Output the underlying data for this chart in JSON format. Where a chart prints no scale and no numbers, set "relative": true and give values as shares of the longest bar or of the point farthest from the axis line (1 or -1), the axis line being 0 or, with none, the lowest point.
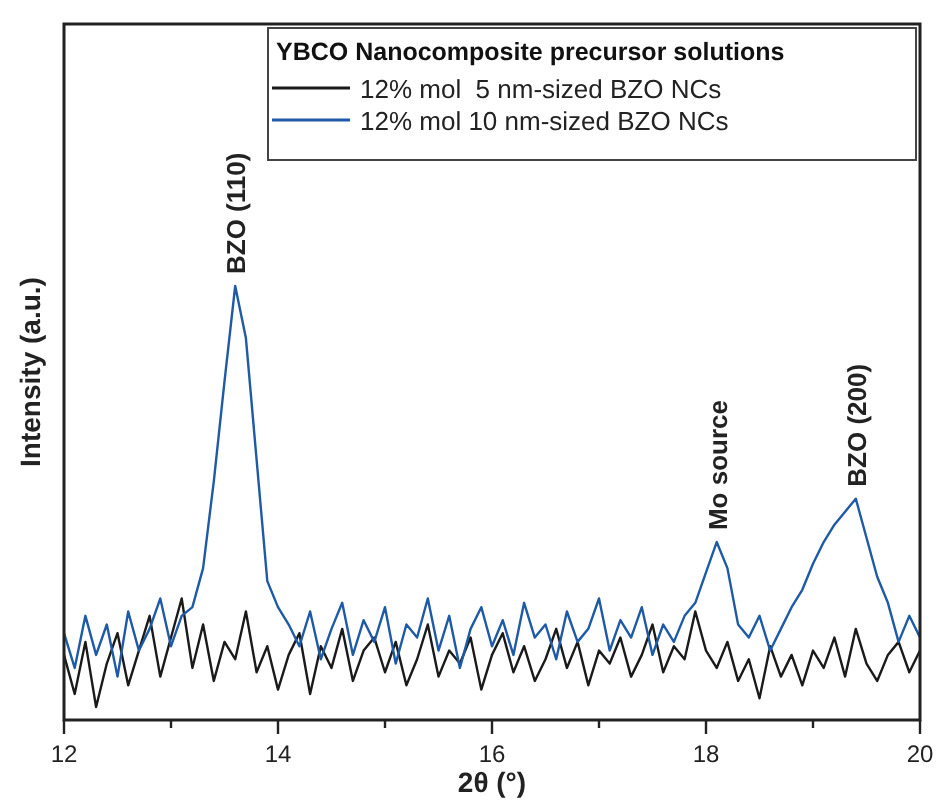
{
  "chart_data": {
    "type": "line",
    "relative": true,
    "xlabel": "2θ (°)",
    "ylabel": "Intensity (a.u.)",
    "legend_title": "YBCO Nanocomposite precursor solutions",
    "legend": "top right",
    "tick_labels": "x",
    "line_style": "solid",
    "xlim": [
      12,
      20
    ],
    "xticks": [
      12,
      {
        "value": 13,
        "label": null
      },
      14,
      {
        "value": 15,
        "label": null
      },
      16,
      {
        "value": 17,
        "label": null
      },
      18,
      {
        "value": 19,
        "label": null
      },
      20
    ],
    "x": [
      12,
      12.1,
      12.2,
      12.3,
      12.4,
      12.5,
      12.6,
      12.7,
      12.8,
      12.9,
      13,
      13.1,
      13.2,
      13.3,
      13.4,
      13.5,
      13.6,
      13.7,
      13.8,
      13.9,
      14,
      14.1,
      14.2,
      14.3,
      14.4,
      14.5,
      14.6,
      14.7,
      14.8,
      14.9,
      15,
      15.1,
      15.2,
      15.3,
      15.4,
      15.5,
      15.6,
      15.7,
      15.8,
      15.9,
      16,
      16.1,
      16.2,
      16.3,
      16.4,
      16.5,
      16.6,
      16.7,
      16.8,
      16.9,
      17,
      17.1,
      17.2,
      17.3,
      17.4,
      17.5,
      17.6,
      17.7,
      17.8,
      17.9,
      18,
      18.1,
      18.2,
      18.3,
      18.4,
      18.5,
      18.6,
      18.7,
      18.8,
      18.9,
      19,
      19.1,
      19.2,
      19.3,
      19.4,
      19.5,
      19.6,
      19.7,
      19.8,
      19.9,
      20
    ],
    "series": [
      {
        "name": "12% mol  5 nm-sized BZO NCs",
        "color": "#1a1a1a",
        "values": [
          0.15,
          0.06,
          0.18,
          0.03,
          0.13,
          0.2,
          0.08,
          0.16,
          0.24,
          0.1,
          0.19,
          0.28,
          0.12,
          0.22,
          0.09,
          0.18,
          0.14,
          0.25,
          0.11,
          0.17,
          0.07,
          0.15,
          0.2,
          0.06,
          0.17,
          0.12,
          0.21,
          0.09,
          0.16,
          0.19,
          0.11,
          0.18,
          0.08,
          0.14,
          0.22,
          0.1,
          0.16,
          0.13,
          0.19,
          0.07,
          0.15,
          0.2,
          0.11,
          0.17,
          0.09,
          0.14,
          0.21,
          0.12,
          0.18,
          0.08,
          0.16,
          0.13,
          0.19,
          0.1,
          0.15,
          0.22,
          0.11,
          0.17,
          0.14,
          0.25,
          0.16,
          0.12,
          0.18,
          0.09,
          0.14,
          0.05,
          0.17,
          0.1,
          0.15,
          0.08,
          0.16,
          0.12,
          0.19,
          0.1,
          0.21,
          0.13,
          0.09,
          0.15,
          0.18,
          0.11,
          0.16
        ]
      },
      {
        "name": "12% mol 10 nm-sized BZO NCs",
        "color": "#1f5aa6",
        "values": [
          0.2,
          0.12,
          0.24,
          0.15,
          0.22,
          0.1,
          0.25,
          0.16,
          0.21,
          0.28,
          0.17,
          0.24,
          0.26,
          0.35,
          0.55,
          0.78,
          1,
          0.88,
          0.6,
          0.32,
          0.26,
          0.22,
          0.17,
          0.25,
          0.14,
          0.21,
          0.27,
          0.15,
          0.23,
          0.18,
          0.26,
          0.13,
          0.22,
          0.19,
          0.28,
          0.16,
          0.24,
          0.12,
          0.21,
          0.26,
          0.17,
          0.23,
          0.15,
          0.27,
          0.19,
          0.22,
          0.14,
          0.25,
          0.18,
          0.21,
          0.28,
          0.16,
          0.23,
          0.19,
          0.26,
          0.15,
          0.22,
          0.18,
          0.24,
          0.27,
          0.34,
          0.41,
          0.35,
          0.22,
          0.19,
          0.24,
          0.16,
          0.21,
          0.26,
          0.3,
          0.36,
          0.41,
          0.45,
          0.48,
          0.51,
          0.42,
          0.33,
          0.27,
          0.18,
          0.24,
          0.19
        ]
      }
    ],
    "annotations": [
      {
        "text": "BZO (110)",
        "x": 13.6,
        "y": 1
      },
      {
        "text": "Mo source",
        "x": 18.1,
        "y": 0.41
      },
      {
        "text": "BZO (200)",
        "x": 19.4,
        "y": 0.51
      }
    ]
  }
}
